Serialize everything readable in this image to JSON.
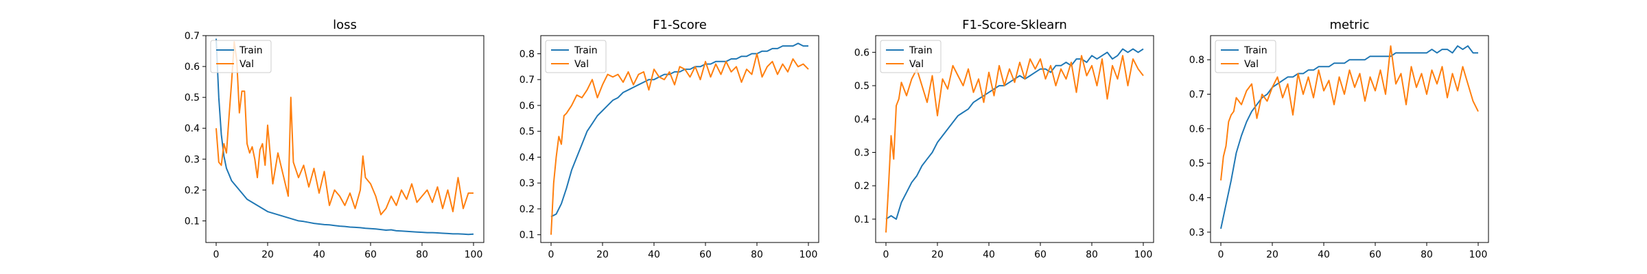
{
  "chart_data": [
    {
      "type": "line",
      "title": "loss",
      "xlabel": "",
      "ylabel": "",
      "xlim": [
        -4,
        104
      ],
      "ylim": [
        0.03,
        0.7
      ],
      "xticks": [
        0,
        20,
        40,
        60,
        80,
        100
      ],
      "yticks": [
        0.1,
        0.2,
        0.3,
        0.4,
        0.5,
        0.6,
        0.7
      ],
      "legend": "upper-left",
      "series": [
        {
          "name": "Train",
          "color": "#1f77b4",
          "x": [
            0,
            1,
            2,
            3,
            4,
            5,
            6,
            8,
            10,
            12,
            14,
            16,
            18,
            20,
            22,
            24,
            26,
            28,
            30,
            32,
            34,
            36,
            38,
            40,
            42,
            44,
            46,
            48,
            50,
            52,
            54,
            56,
            58,
            60,
            62,
            64,
            66,
            68,
            70,
            72,
            74,
            76,
            78,
            80,
            82,
            84,
            86,
            88,
            90,
            92,
            94,
            96,
            98,
            100
          ],
          "y": [
            0.69,
            0.5,
            0.38,
            0.31,
            0.27,
            0.25,
            0.23,
            0.21,
            0.19,
            0.17,
            0.16,
            0.15,
            0.14,
            0.13,
            0.125,
            0.12,
            0.115,
            0.11,
            0.105,
            0.1,
            0.098,
            0.095,
            0.092,
            0.09,
            0.088,
            0.087,
            0.085,
            0.083,
            0.082,
            0.08,
            0.079,
            0.078,
            0.076,
            0.075,
            0.074,
            0.072,
            0.07,
            0.071,
            0.068,
            0.067,
            0.066,
            0.065,
            0.064,
            0.063,
            0.062,
            0.062,
            0.061,
            0.06,
            0.059,
            0.058,
            0.058,
            0.057,
            0.056,
            0.057
          ]
        },
        {
          "name": "Val",
          "color": "#ff7f0e",
          "x": [
            0,
            1,
            2,
            3,
            4,
            5,
            6,
            7,
            8,
            9,
            10,
            11,
            12,
            13,
            14,
            15,
            16,
            17,
            18,
            19,
            20,
            22,
            24,
            26,
            28,
            29,
            30,
            32,
            34,
            36,
            38,
            40,
            42,
            44,
            46,
            48,
            50,
            52,
            54,
            56,
            57,
            58,
            60,
            62,
            64,
            66,
            68,
            70,
            72,
            74,
            76,
            78,
            80,
            82,
            84,
            86,
            88,
            90,
            92,
            94,
            96,
            98,
            100
          ],
          "y": [
            0.4,
            0.29,
            0.28,
            0.35,
            0.32,
            0.44,
            0.55,
            0.68,
            0.62,
            0.45,
            0.52,
            0.52,
            0.35,
            0.32,
            0.34,
            0.3,
            0.24,
            0.33,
            0.35,
            0.28,
            0.41,
            0.22,
            0.32,
            0.25,
            0.18,
            0.5,
            0.29,
            0.24,
            0.28,
            0.21,
            0.27,
            0.19,
            0.26,
            0.15,
            0.2,
            0.18,
            0.15,
            0.19,
            0.14,
            0.2,
            0.31,
            0.24,
            0.22,
            0.18,
            0.12,
            0.14,
            0.18,
            0.15,
            0.2,
            0.17,
            0.22,
            0.16,
            0.18,
            0.2,
            0.16,
            0.21,
            0.14,
            0.2,
            0.13,
            0.24,
            0.14,
            0.19,
            0.19
          ]
        }
      ]
    },
    {
      "type": "line",
      "title": "F1-Score",
      "xlabel": "",
      "ylabel": "",
      "xlim": [
        -4,
        104
      ],
      "ylim": [
        0.07,
        0.87
      ],
      "xticks": [
        0,
        20,
        40,
        60,
        80,
        100
      ],
      "yticks": [
        0.1,
        0.2,
        0.3,
        0.4,
        0.5,
        0.6,
        0.7,
        0.8
      ],
      "legend": "upper-left",
      "series": [
        {
          "name": "Train",
          "color": "#1f77b4",
          "x": [
            0,
            2,
            4,
            6,
            8,
            10,
            12,
            14,
            16,
            18,
            20,
            22,
            24,
            26,
            28,
            30,
            32,
            34,
            36,
            38,
            40,
            42,
            44,
            46,
            48,
            50,
            52,
            54,
            56,
            58,
            60,
            62,
            64,
            66,
            68,
            70,
            72,
            74,
            76,
            78,
            80,
            82,
            84,
            86,
            88,
            90,
            92,
            94,
            96,
            98,
            100
          ],
          "y": [
            0.17,
            0.18,
            0.22,
            0.28,
            0.35,
            0.4,
            0.45,
            0.5,
            0.53,
            0.56,
            0.58,
            0.6,
            0.62,
            0.63,
            0.65,
            0.66,
            0.67,
            0.68,
            0.69,
            0.7,
            0.7,
            0.71,
            0.72,
            0.72,
            0.73,
            0.73,
            0.74,
            0.74,
            0.75,
            0.75,
            0.76,
            0.76,
            0.77,
            0.77,
            0.77,
            0.78,
            0.78,
            0.79,
            0.79,
            0.8,
            0.8,
            0.81,
            0.81,
            0.82,
            0.82,
            0.83,
            0.83,
            0.83,
            0.84,
            0.83,
            0.83
          ]
        },
        {
          "name": "Val",
          "color": "#ff7f0e",
          "x": [
            0,
            1,
            2,
            3,
            4,
            5,
            6,
            8,
            10,
            12,
            14,
            16,
            18,
            20,
            22,
            24,
            26,
            28,
            30,
            32,
            34,
            36,
            38,
            40,
            42,
            44,
            46,
            48,
            50,
            52,
            54,
            56,
            58,
            60,
            62,
            64,
            66,
            68,
            70,
            72,
            74,
            76,
            78,
            80,
            82,
            84,
            86,
            88,
            90,
            92,
            94,
            96,
            98,
            100
          ],
          "y": [
            0.1,
            0.3,
            0.4,
            0.48,
            0.45,
            0.56,
            0.57,
            0.6,
            0.64,
            0.63,
            0.66,
            0.7,
            0.63,
            0.68,
            0.72,
            0.71,
            0.72,
            0.69,
            0.73,
            0.68,
            0.72,
            0.73,
            0.66,
            0.74,
            0.71,
            0.7,
            0.73,
            0.68,
            0.75,
            0.74,
            0.71,
            0.75,
            0.7,
            0.77,
            0.71,
            0.76,
            0.72,
            0.77,
            0.73,
            0.75,
            0.69,
            0.74,
            0.72,
            0.8,
            0.71,
            0.75,
            0.77,
            0.72,
            0.76,
            0.73,
            0.78,
            0.75,
            0.76,
            0.74
          ]
        }
      ]
    },
    {
      "type": "line",
      "title": "F1-Score-Sklearn",
      "xlabel": "",
      "ylabel": "",
      "xlim": [
        -4,
        104
      ],
      "ylim": [
        0.03,
        0.65
      ],
      "xticks": [
        0,
        20,
        40,
        60,
        80,
        100
      ],
      "yticks": [
        0.1,
        0.2,
        0.3,
        0.4,
        0.5,
        0.6
      ],
      "legend": "upper-left",
      "series": [
        {
          "name": "Train",
          "color": "#1f77b4",
          "x": [
            0,
            2,
            4,
            6,
            8,
            10,
            12,
            14,
            16,
            18,
            20,
            22,
            24,
            26,
            28,
            30,
            32,
            34,
            36,
            38,
            40,
            42,
            44,
            46,
            48,
            50,
            52,
            54,
            56,
            58,
            60,
            62,
            64,
            66,
            68,
            70,
            72,
            74,
            76,
            78,
            80,
            82,
            84,
            86,
            88,
            90,
            92,
            94,
            96,
            98,
            100
          ],
          "y": [
            0.1,
            0.11,
            0.1,
            0.15,
            0.18,
            0.21,
            0.23,
            0.26,
            0.28,
            0.3,
            0.33,
            0.35,
            0.37,
            0.39,
            0.41,
            0.42,
            0.43,
            0.45,
            0.46,
            0.47,
            0.48,
            0.49,
            0.5,
            0.5,
            0.51,
            0.52,
            0.53,
            0.52,
            0.53,
            0.54,
            0.55,
            0.55,
            0.54,
            0.56,
            0.56,
            0.57,
            0.56,
            0.58,
            0.58,
            0.57,
            0.59,
            0.58,
            0.59,
            0.6,
            0.58,
            0.59,
            0.61,
            0.6,
            0.61,
            0.6,
            0.61
          ]
        },
        {
          "name": "Val",
          "color": "#ff7f0e",
          "x": [
            0,
            1,
            2,
            3,
            4,
            5,
            6,
            8,
            10,
            12,
            14,
            16,
            18,
            20,
            22,
            24,
            26,
            28,
            30,
            32,
            34,
            36,
            38,
            40,
            42,
            44,
            46,
            48,
            50,
            52,
            54,
            56,
            58,
            60,
            62,
            64,
            66,
            68,
            70,
            72,
            74,
            76,
            78,
            80,
            82,
            84,
            86,
            88,
            90,
            92,
            94,
            96,
            98,
            100
          ],
          "y": [
            0.06,
            0.2,
            0.35,
            0.28,
            0.44,
            0.46,
            0.51,
            0.47,
            0.52,
            0.55,
            0.5,
            0.45,
            0.53,
            0.41,
            0.52,
            0.49,
            0.56,
            0.53,
            0.5,
            0.55,
            0.48,
            0.52,
            0.45,
            0.54,
            0.47,
            0.56,
            0.5,
            0.55,
            0.51,
            0.57,
            0.52,
            0.58,
            0.55,
            0.58,
            0.52,
            0.56,
            0.5,
            0.55,
            0.52,
            0.57,
            0.48,
            0.59,
            0.53,
            0.56,
            0.5,
            0.58,
            0.46,
            0.56,
            0.52,
            0.59,
            0.5,
            0.58,
            0.55,
            0.53
          ]
        }
      ]
    },
    {
      "type": "line",
      "title": "metric",
      "xlabel": "",
      "ylabel": "",
      "xlim": [
        -4,
        104
      ],
      "ylim": [
        0.27,
        0.87
      ],
      "xticks": [
        0,
        20,
        40,
        60,
        80,
        100
      ],
      "yticks": [
        0.3,
        0.4,
        0.5,
        0.6,
        0.7,
        0.8
      ],
      "legend": "upper-left",
      "series": [
        {
          "name": "Train",
          "color": "#1f77b4",
          "x": [
            0,
            2,
            4,
            6,
            8,
            10,
            12,
            14,
            16,
            18,
            20,
            22,
            24,
            26,
            28,
            30,
            32,
            34,
            36,
            38,
            40,
            42,
            44,
            46,
            48,
            50,
            52,
            54,
            56,
            58,
            60,
            62,
            64,
            66,
            68,
            70,
            72,
            74,
            76,
            78,
            80,
            82,
            84,
            86,
            88,
            90,
            92,
            94,
            96,
            98,
            100
          ],
          "y": [
            0.31,
            0.38,
            0.45,
            0.53,
            0.58,
            0.62,
            0.65,
            0.67,
            0.69,
            0.7,
            0.72,
            0.73,
            0.74,
            0.75,
            0.75,
            0.76,
            0.76,
            0.77,
            0.77,
            0.78,
            0.78,
            0.78,
            0.79,
            0.79,
            0.79,
            0.8,
            0.8,
            0.8,
            0.8,
            0.81,
            0.81,
            0.81,
            0.81,
            0.81,
            0.82,
            0.82,
            0.82,
            0.82,
            0.82,
            0.82,
            0.82,
            0.83,
            0.82,
            0.83,
            0.83,
            0.82,
            0.84,
            0.83,
            0.84,
            0.82,
            0.82
          ]
        },
        {
          "name": "Val",
          "color": "#ff7f0e",
          "x": [
            0,
            1,
            2,
            3,
            4,
            5,
            6,
            8,
            10,
            12,
            14,
            16,
            18,
            20,
            22,
            24,
            26,
            28,
            30,
            32,
            34,
            36,
            38,
            40,
            42,
            44,
            46,
            48,
            50,
            52,
            54,
            56,
            58,
            60,
            62,
            64,
            66,
            68,
            70,
            72,
            74,
            76,
            78,
            80,
            82,
            84,
            86,
            88,
            90,
            92,
            94,
            96,
            98,
            100
          ],
          "y": [
            0.45,
            0.52,
            0.55,
            0.62,
            0.64,
            0.65,
            0.69,
            0.67,
            0.71,
            0.73,
            0.63,
            0.7,
            0.68,
            0.72,
            0.75,
            0.69,
            0.73,
            0.64,
            0.76,
            0.7,
            0.75,
            0.69,
            0.77,
            0.71,
            0.74,
            0.67,
            0.75,
            0.7,
            0.77,
            0.72,
            0.76,
            0.68,
            0.75,
            0.71,
            0.77,
            0.7,
            0.84,
            0.73,
            0.76,
            0.67,
            0.78,
            0.72,
            0.76,
            0.7,
            0.77,
            0.73,
            0.78,
            0.69,
            0.76,
            0.71,
            0.78,
            0.73,
            0.68,
            0.65
          ]
        }
      ]
    }
  ]
}
